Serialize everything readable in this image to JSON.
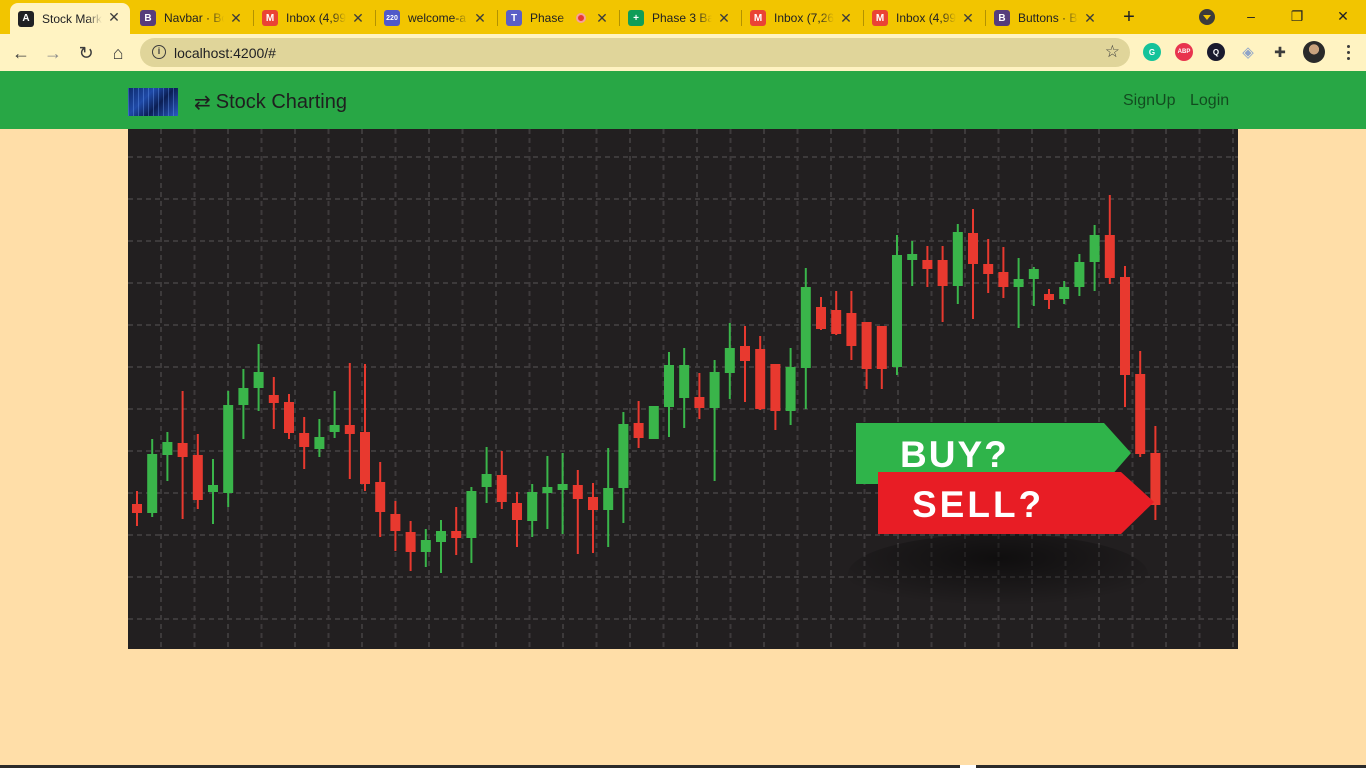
{
  "browser": {
    "tabs": [
      {
        "label": "Stock Mark",
        "icon": "angular-icon",
        "color": "#202124",
        "glyph": "A",
        "active": true
      },
      {
        "label": "Navbar · Bo",
        "icon": "bootstrap-icon",
        "color": "#563d7c",
        "glyph": "B"
      },
      {
        "label": "Inbox (4,99",
        "icon": "gmail-icon",
        "color": "#ea4335",
        "glyph": "M"
      },
      {
        "label": "welcome-a",
        "icon": "badge-220-icon",
        "color": "#5059c9",
        "glyph": "220"
      },
      {
        "label": "Phase",
        "icon": "teams-icon",
        "color": "#5b5fc7",
        "glyph": "T",
        "recording": true
      },
      {
        "label": "Phase 3 Ba",
        "icon": "sheets-icon",
        "color": "#0f9d58",
        "glyph": "+"
      },
      {
        "label": "Inbox (7,26",
        "icon": "gmail-icon",
        "color": "#ea4335",
        "glyph": "M"
      },
      {
        "label": "Inbox (4,99",
        "icon": "gmail-icon",
        "color": "#ea4335",
        "glyph": "M"
      },
      {
        "label": "Buttons · B",
        "icon": "bootstrap-icon",
        "color": "#563d7c",
        "glyph": "B"
      }
    ],
    "url": "localhost:4200/#",
    "extensions": [
      {
        "name": "grammarly-icon",
        "glyph": "G",
        "color": "#15c39a"
      },
      {
        "name": "adblock-icon",
        "glyph": "ABP",
        "color": "#e8344e"
      },
      {
        "name": "extension-q-icon",
        "glyph": "Q",
        "color": "#1a1a2e"
      },
      {
        "name": "shield-ext-icon",
        "glyph": "◈",
        "color": "#8ea3c8"
      },
      {
        "name": "puzzle-icon",
        "glyph": "✚",
        "color": "#3c3c3c"
      },
      {
        "name": "profile-avatar-icon",
        "glyph": "",
        "color": "#333333"
      }
    ]
  },
  "navbar": {
    "brand": "Stock Charting",
    "links": {
      "signup": "SignUp",
      "login": "Login"
    }
  },
  "hero": {
    "buy_label": "BUY?",
    "sell_label": "SELL?",
    "colors": {
      "bg": "#221f20",
      "up": "#3ab54a",
      "down": "#e8392f",
      "buy": "#2fb44a",
      "sell": "#e81d25"
    }
  }
}
